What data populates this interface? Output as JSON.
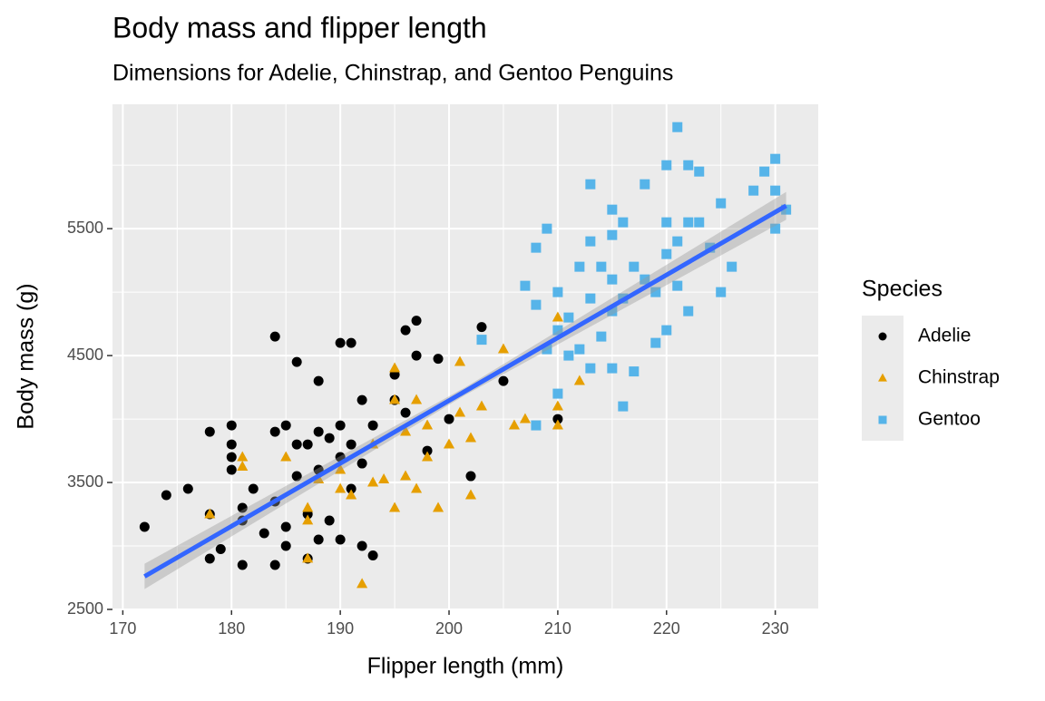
{
  "chart_data": {
    "type": "scatter",
    "title": "Body mass and flipper length",
    "subtitle": "Dimensions for Adelie, Chinstrap, and Gentoo Penguins",
    "x_label": "Flipper length (mm)",
    "y_label": "Body mass (g)",
    "legend_title": "Species",
    "legend": "right",
    "grid": true,
    "xlim": [
      169.05,
      233.95
    ],
    "ylim": [
      2500,
      6480
    ],
    "xticks": [
      170,
      180,
      190,
      200,
      210,
      220,
      230
    ],
    "yticks": [
      2500,
      3500,
      4500,
      5500
    ],
    "series": [
      {
        "name": "Adelie",
        "color": "#000000",
        "shape": "circle",
        "x": [
          172,
          174,
          176,
          178,
          178,
          178,
          179,
          180,
          180,
          180,
          180,
          181,
          181,
          181,
          182,
          183,
          184,
          184,
          184,
          184,
          185,
          185,
          185,
          186,
          186,
          186,
          187,
          187,
          187,
          188,
          188,
          188,
          188,
          189,
          189,
          190,
          190,
          190,
          190,
          191,
          191,
          191,
          192,
          192,
          192,
          193,
          193,
          195,
          195,
          196,
          196,
          197,
          197,
          198,
          199,
          200,
          202,
          203,
          205,
          210
        ],
        "values": [
          3150,
          3400,
          3450,
          3900,
          3250,
          2900,
          2975,
          3950,
          3800,
          3700,
          3600,
          3300,
          2850,
          3200,
          3450,
          3100,
          4650,
          3900,
          3350,
          2850,
          3950,
          3150,
          3000,
          4450,
          3800,
          3550,
          3800,
          3250,
          2900,
          4300,
          3900,
          3600,
          3050,
          3850,
          3200,
          4600,
          3950,
          3700,
          3050,
          4600,
          3800,
          3450,
          4150,
          3650,
          3000,
          3950,
          2925,
          4350,
          4150,
          4700,
          4050,
          4775,
          4500,
          3750,
          4475,
          4000,
          3550,
          4725,
          4300,
          4000
        ]
      },
      {
        "name": "Chinstrap",
        "color": "#e69f00",
        "shape": "triangle",
        "x": [
          178,
          181,
          181,
          185,
          187,
          187,
          187,
          188,
          190,
          190,
          191,
          192,
          193,
          193,
          194,
          195,
          195,
          195,
          196,
          196,
          197,
          197,
          198,
          198,
          199,
          200,
          201,
          201,
          202,
          202,
          203,
          205,
          206,
          207,
          210,
          210,
          210,
          212
        ],
        "values": [
          3250,
          3700,
          3625,
          3700,
          3300,
          3200,
          2900,
          3525,
          3450,
          3600,
          3400,
          2700,
          3800,
          3500,
          3525,
          4400,
          4150,
          3300,
          3900,
          3550,
          4150,
          3450,
          3950,
          3700,
          3300,
          3800,
          4050,
          4450,
          3400,
          3850,
          4100,
          4550,
          3950,
          4000,
          4800,
          4100,
          3950,
          4300
        ]
      },
      {
        "name": "Gentoo",
        "color": "#56b4e9",
        "shape": "square",
        "x": [
          203,
          207,
          208,
          208,
          208,
          209,
          209,
          210,
          210,
          210,
          211,
          211,
          212,
          212,
          213,
          213,
          213,
          213,
          214,
          214,
          215,
          215,
          215,
          215,
          215,
          216,
          216,
          216,
          217,
          217,
          218,
          218,
          219,
          219,
          220,
          220,
          220,
          220,
          221,
          221,
          221,
          222,
          222,
          222,
          223,
          223,
          224,
          225,
          225,
          226,
          228,
          229,
          230,
          230,
          230,
          231
        ],
        "values": [
          4625,
          5050,
          4900,
          5350,
          3950,
          5500,
          4550,
          4700,
          4200,
          5000,
          4800,
          4500,
          5200,
          4550,
          5850,
          5400,
          4950,
          4400,
          5200,
          4650,
          5650,
          5450,
          5100,
          4850,
          4400,
          5550,
          4950,
          4100,
          5200,
          4375,
          5850,
          5100,
          5000,
          4600,
          6000,
          5550,
          5300,
          4700,
          6300,
          5400,
          5050,
          6000,
          5550,
          4850,
          5950,
          5550,
          5350,
          5700,
          5000,
          5200,
          5800,
          5950,
          6050,
          5800,
          5500,
          5650
        ]
      }
    ],
    "smooth": {
      "color": "#3366ff",
      "x": [
        172,
        201.5,
        231
      ],
      "values": [
        2760,
        4220,
        5680
      ],
      "lower": [
        2660,
        4190,
        5570
      ],
      "upper": [
        2860,
        4250,
        5790
      ]
    }
  }
}
